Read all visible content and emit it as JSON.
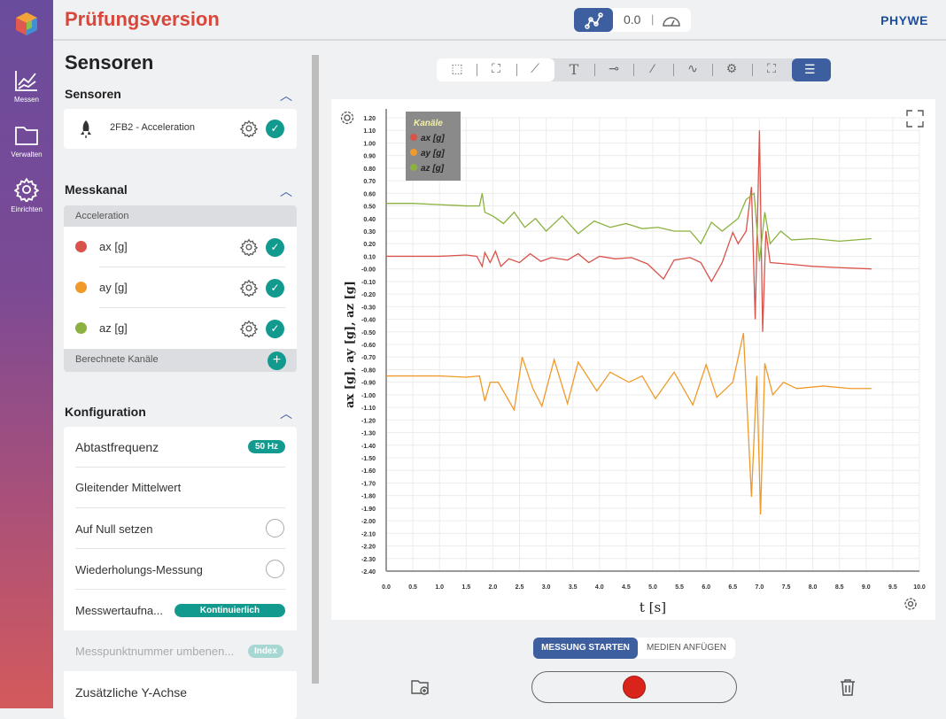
{
  "app": {
    "title": "Prüfungsversion",
    "brand": "PHYWE",
    "mode_value": "0.0"
  },
  "rail": [
    {
      "label": "Messen"
    },
    {
      "label": "Verwalten"
    },
    {
      "label": "Einrichten"
    }
  ],
  "panel": {
    "heading": "Sensoren",
    "sensors_title": "Sensoren",
    "sensor_name": "2FB2 - Acceleration",
    "channel_title": "Messkanal",
    "channel_group": "Acceleration",
    "channels": [
      {
        "label": "ax [g]",
        "color": "#d9534a"
      },
      {
        "label": "ay [g]",
        "color": "#ef9a2a"
      },
      {
        "label": "az [g]",
        "color": "#8bb23f"
      }
    ],
    "computed": "Berechnete Kanäle",
    "config_title": "Konfiguration",
    "config": [
      {
        "label": "Abtastfrequenz",
        "badge": "50 Hz"
      },
      {
        "label": "Gleitender Mittelwert"
      },
      {
        "label": "Auf Null setzen"
      },
      {
        "label": "Wiederholungs-Messung"
      },
      {
        "label": "Messwertaufna...",
        "badge": "Kontinuierlich"
      },
      {
        "label": "Messpunktnummer umbenen...",
        "badge": "Index"
      },
      {
        "label": "Zusätzliche Y-Achse"
      }
    ]
  },
  "bottom": {
    "start": "MESSUNG STARTEN",
    "media": "MEDIEN ANFÜGEN"
  },
  "chart_data": {
    "type": "line",
    "xlabel": "t [s]",
    "ylabel": "ax [g], ay [g], az [g]",
    "xlim": [
      0,
      10
    ],
    "ylim": [
      -2.4,
      1.2
    ],
    "xstep": 0.5,
    "ystep": 0.1,
    "legend_title": "Kanäle",
    "legend_position": "top-left",
    "grid": true,
    "series": [
      {
        "name": "ax [g]",
        "color": "#d9534a",
        "points": [
          [
            0,
            0.1
          ],
          [
            0.5,
            0.1
          ],
          [
            1.0,
            0.1
          ],
          [
            1.5,
            0.11
          ],
          [
            1.7,
            0.1
          ],
          [
            1.8,
            0.02
          ],
          [
            1.85,
            0.13
          ],
          [
            1.95,
            0.05
          ],
          [
            2.05,
            0.14
          ],
          [
            2.15,
            0.02
          ],
          [
            2.3,
            0.08
          ],
          [
            2.5,
            0.05
          ],
          [
            2.7,
            0.12
          ],
          [
            2.9,
            0.06
          ],
          [
            3.1,
            0.09
          ],
          [
            3.4,
            0.07
          ],
          [
            3.6,
            0.12
          ],
          [
            3.8,
            0.05
          ],
          [
            4.0,
            0.1
          ],
          [
            4.3,
            0.08
          ],
          [
            4.6,
            0.09
          ],
          [
            4.9,
            0.04
          ],
          [
            5.2,
            -0.08
          ],
          [
            5.4,
            0.07
          ],
          [
            5.7,
            0.09
          ],
          [
            5.9,
            0.05
          ],
          [
            6.1,
            -0.1
          ],
          [
            6.3,
            0.05
          ],
          [
            6.5,
            0.29
          ],
          [
            6.6,
            0.2
          ],
          [
            6.75,
            0.3
          ],
          [
            6.85,
            0.65
          ],
          [
            6.92,
            -0.4
          ],
          [
            7.0,
            1.1
          ],
          [
            7.06,
            -0.5
          ],
          [
            7.12,
            0.3
          ],
          [
            7.2,
            0.05
          ],
          [
            7.5,
            0.04
          ],
          [
            8.0,
            0.02
          ],
          [
            8.5,
            0.01
          ],
          [
            9.1,
            0.0
          ]
        ]
      },
      {
        "name": "ay [g]",
        "color": "#ef9a2a",
        "points": [
          [
            0,
            -0.85
          ],
          [
            0.5,
            -0.85
          ],
          [
            1.0,
            -0.85
          ],
          [
            1.5,
            -0.86
          ],
          [
            1.75,
            -0.85
          ],
          [
            1.85,
            -1.05
          ],
          [
            1.95,
            -0.9
          ],
          [
            2.1,
            -0.9
          ],
          [
            2.4,
            -1.12
          ],
          [
            2.55,
            -0.7
          ],
          [
            2.75,
            -0.95
          ],
          [
            2.92,
            -1.09
          ],
          [
            3.15,
            -0.72
          ],
          [
            3.4,
            -1.07
          ],
          [
            3.6,
            -0.74
          ],
          [
            3.95,
            -0.97
          ],
          [
            4.2,
            -0.82
          ],
          [
            4.55,
            -0.9
          ],
          [
            4.8,
            -0.85
          ],
          [
            5.05,
            -1.03
          ],
          [
            5.4,
            -0.82
          ],
          [
            5.75,
            -1.08
          ],
          [
            6.0,
            -0.76
          ],
          [
            6.2,
            -1.02
          ],
          [
            6.5,
            -0.9
          ],
          [
            6.7,
            -0.51
          ],
          [
            6.85,
            -1.81
          ],
          [
            6.95,
            -0.85
          ],
          [
            7.02,
            -1.95
          ],
          [
            7.1,
            -0.75
          ],
          [
            7.25,
            -1.0
          ],
          [
            7.45,
            -0.9
          ],
          [
            7.7,
            -0.95
          ],
          [
            8.2,
            -0.93
          ],
          [
            8.7,
            -0.95
          ],
          [
            9.1,
            -0.95
          ]
        ]
      },
      {
        "name": "az [g]",
        "color": "#8bb23f",
        "points": [
          [
            0,
            0.52
          ],
          [
            0.5,
            0.52
          ],
          [
            1.0,
            0.51
          ],
          [
            1.5,
            0.5
          ],
          [
            1.75,
            0.5
          ],
          [
            1.8,
            0.6
          ],
          [
            1.85,
            0.45
          ],
          [
            2.0,
            0.42
          ],
          [
            2.2,
            0.36
          ],
          [
            2.4,
            0.45
          ],
          [
            2.6,
            0.33
          ],
          [
            2.8,
            0.4
          ],
          [
            3.0,
            0.3
          ],
          [
            3.3,
            0.42
          ],
          [
            3.6,
            0.28
          ],
          [
            3.9,
            0.38
          ],
          [
            4.2,
            0.33
          ],
          [
            4.5,
            0.36
          ],
          [
            4.8,
            0.32
          ],
          [
            5.1,
            0.33
          ],
          [
            5.4,
            0.3
          ],
          [
            5.7,
            0.3
          ],
          [
            5.9,
            0.2
          ],
          [
            6.1,
            0.37
          ],
          [
            6.3,
            0.3
          ],
          [
            6.6,
            0.4
          ],
          [
            6.75,
            0.55
          ],
          [
            6.9,
            0.6
          ],
          [
            7.0,
            0.06
          ],
          [
            7.1,
            0.45
          ],
          [
            7.2,
            0.2
          ],
          [
            7.4,
            0.3
          ],
          [
            7.6,
            0.23
          ],
          [
            8.0,
            0.24
          ],
          [
            8.5,
            0.22
          ],
          [
            9.1,
            0.24
          ]
        ]
      }
    ]
  }
}
